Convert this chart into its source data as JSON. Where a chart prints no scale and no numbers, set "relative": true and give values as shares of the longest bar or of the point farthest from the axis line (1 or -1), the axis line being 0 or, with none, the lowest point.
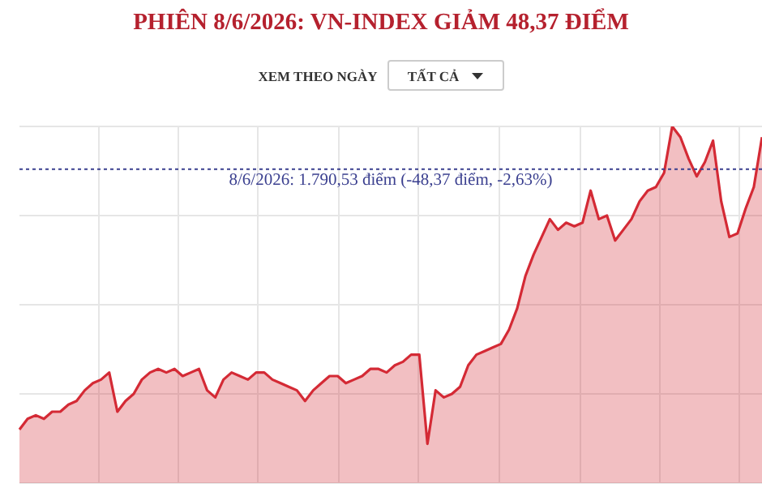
{
  "chart_data": {
    "type": "area",
    "title": "PHIÊN 8/6/2026: VN-INDEX GIẢM 48,37 ĐIỂM",
    "relative": true,
    "grid": true,
    "annotations": [
      "XEM THEO NGÀY",
      "TẤT CẢ",
      "8/6/2026: 1.790,53 điểm (-48,37 điểm, -2,63%)"
    ],
    "categories": [
      null,
      null,
      null,
      null,
      null,
      null,
      null,
      null,
      null,
      null,
      null,
      null,
      null,
      null,
      null,
      null,
      null,
      null,
      null,
      null,
      null,
      null,
      null,
      null,
      null,
      null,
      null,
      null,
      null,
      null,
      null,
      null,
      null,
      null,
      null,
      null,
      null,
      null,
      null,
      null,
      null,
      null,
      null,
      null,
      null,
      null,
      null,
      null,
      null,
      null,
      null,
      null,
      null,
      null,
      null,
      null,
      null,
      null,
      null,
      null,
      null,
      null,
      null,
      null,
      null,
      null,
      null,
      null,
      null,
      null,
      null,
      null,
      null,
      null,
      null,
      null,
      null,
      null,
      null,
      null,
      null,
      null,
      null,
      null,
      null,
      null,
      null,
      null,
      null,
      null,
      null,
      null
    ],
    "series": [
      {
        "color": "#d42a35",
        "values": [
          0.15,
          0.18,
          0.19,
          0.18,
          0.2,
          0.2,
          0.22,
          0.23,
          0.26,
          0.28,
          0.29,
          0.31,
          0.2,
          0.23,
          0.25,
          0.29,
          0.31,
          0.32,
          0.31,
          0.32,
          0.3,
          0.31,
          0.32,
          0.26,
          0.24,
          0.29,
          0.31,
          0.3,
          0.29,
          0.31,
          0.31,
          0.29,
          0.28,
          0.27,
          0.26,
          0.23,
          0.26,
          0.28,
          0.3,
          0.3,
          0.28,
          0.29,
          0.3,
          0.32,
          0.32,
          0.31,
          0.33,
          0.34,
          0.36,
          0.36,
          0.11,
          0.26,
          0.24,
          0.25,
          0.27,
          0.33,
          0.36,
          0.37,
          0.38,
          0.39,
          0.43,
          0.49,
          0.58,
          0.64,
          0.69,
          0.74,
          0.71,
          0.73,
          0.72,
          0.73,
          0.82,
          0.74,
          0.75,
          0.68,
          0.71,
          0.74,
          0.79,
          0.82,
          0.83,
          0.87,
          1,
          0.97,
          0.91,
          0.86,
          0.9,
          0.96,
          0.79,
          0.69,
          0.7,
          0.77,
          0.83,
          0.97
        ]
      }
    ],
    "ref_lines": [
      {
        "axis": "y",
        "value": 0.88,
        "color": "#3a3f8f",
        "line_style": "dotted"
      }
    ]
  }
}
